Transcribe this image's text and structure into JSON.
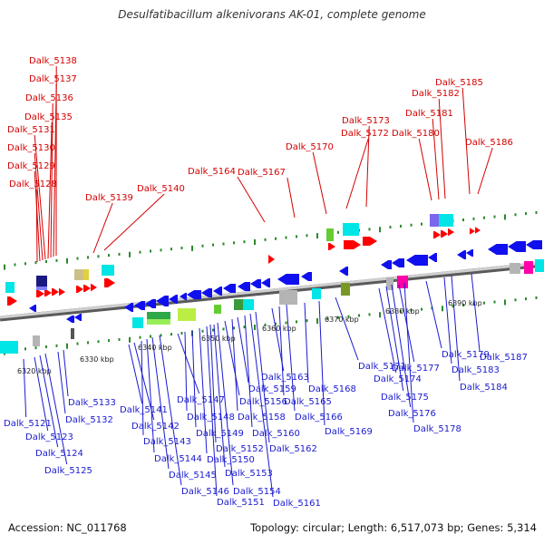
{
  "title": "Desulfatibacillum alkenivorans AK-01, complete genome",
  "footer": {
    "accession": "Accession: NC_011768",
    "topology": "Topology: circular; Length: 6,517,073 bp; Genes: 5,314"
  },
  "colors": {
    "top_label": "#d40000",
    "bottom_label": "#1a1ad0",
    "forward_gene": "#ff0000",
    "reverse_gene": "#1010ee",
    "backbone": "#8a8a8a",
    "tick": "#2a8a2a",
    "cog_cyan": "#00e5e5",
    "cog_green": "#66cc33",
    "cog_grey": "#b4b4b4",
    "cog_magenta": "#ff00aa"
  },
  "kbp_ticks": [
    "6320 kbp",
    "6330 kbp",
    "6340 kbp",
    "6350 kbp",
    "6360 kbp",
    "6370 kbp",
    "6380 kbp",
    "6390 kbp"
  ],
  "top_genes": [
    "Dalk_5138",
    "Dalk_5137",
    "Dalk_5136",
    "Dalk_5135",
    "Dalk_5131",
    "Dalk_5130",
    "Dalk_5129",
    "Dalk_5128",
    "Dalk_5139",
    "Dalk_5140",
    "Dalk_5164",
    "Dalk_5167",
    "Dalk_5170",
    "Dalk_5172",
    "Dalk_5173",
    "Dalk_5180",
    "Dalk_5181",
    "Dalk_5182",
    "Dalk_5185",
    "Dalk_5186"
  ],
  "bottom_genes": [
    "Dalk_5121",
    "Dalk_5123",
    "Dalk_5124",
    "Dalk_5125",
    "Dalk_5133",
    "Dalk_5132",
    "Dalk_5141",
    "Dalk_5142",
    "Dalk_5143",
    "Dalk_5144",
    "Dalk_5145",
    "Dalk_5146",
    "Dalk_5147",
    "Dalk_5148",
    "Dalk_5149",
    "Dalk_5150",
    "Dalk_5151",
    "Dalk_5152",
    "Dalk_5153",
    "Dalk_5154",
    "Dalk_5156",
    "Dalk_5158",
    "Dalk_5159",
    "Dalk_5160",
    "Dalk_5161",
    "Dalk_5162",
    "Dalk_5163",
    "Dalk_5165",
    "Dalk_5166",
    "Dalk_5168",
    "Dalk_5169",
    "Dalk_5171",
    "Dalk_5174",
    "Dalk_5175",
    "Dalk_5176",
    "Dalk_5177",
    "Dalk_5178",
    "Dalk_5179",
    "Dalk_5183",
    "Dalk_5184",
    "Dalk_5187"
  ]
}
